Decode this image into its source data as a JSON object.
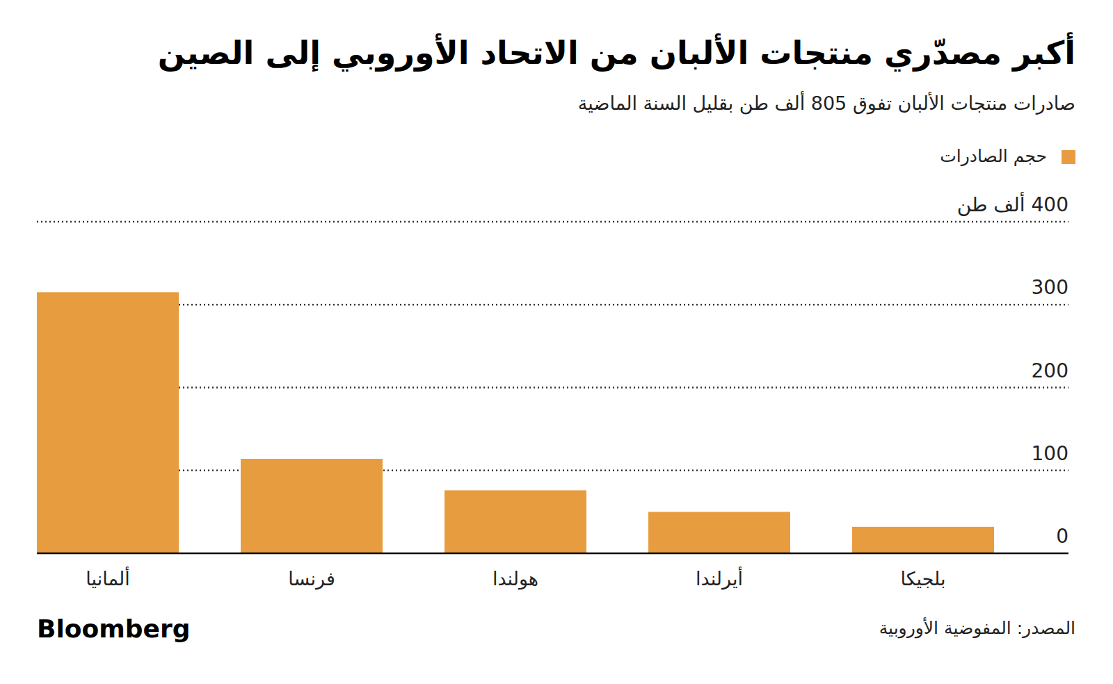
{
  "chart_data": {
    "type": "bar",
    "title": "أكبر مصدّري منتجات الألبان من الاتحاد الأوروبي إلى الصين",
    "subtitle": "صادرات منتجات الألبان تفوق 805 ألف طن بقليل السنة الماضية",
    "categories": [
      "ألمانيا",
      "فرنسا",
      "هولندا",
      "أيرلندا",
      "بلجيكا"
    ],
    "series": [
      {
        "name": "حجم الصادرات",
        "color": "#e89c40",
        "values": [
          315,
          114,
          76,
          50,
          32
        ]
      }
    ],
    "ylim": [
      0,
      400
    ],
    "yticks": [
      0,
      100,
      200,
      300,
      {
        "value": 400,
        "label": "400 ألف طن"
      }
    ],
    "grid": true,
    "legend": "top-right",
    "source": "المصدر: المفوضية الأوروبية",
    "logo": "Bloomberg"
  }
}
